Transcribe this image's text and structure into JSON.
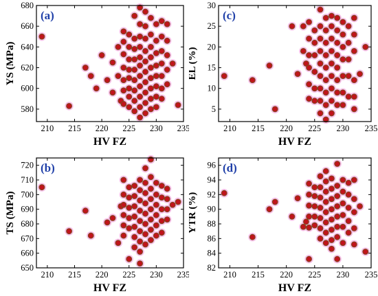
{
  "colors": {
    "marker_face": "#c0141c",
    "marker_edge": "#7a4a1c",
    "halo": "#f4a9e0",
    "axis": "#000000",
    "panel_letter": "#1f3fa8"
  },
  "chart_data": [
    {
      "type": "scatter",
      "panel": "(a)",
      "xlabel": "HV FZ",
      "ylabel": "YS (MPa)",
      "xlim": [
        208,
        235
      ],
      "ylim": [
        568,
        680
      ],
      "xticks": [
        210,
        215,
        220,
        225,
        230,
        235
      ],
      "yticks": [
        580,
        600,
        620,
        640,
        660,
        680
      ],
      "points": [
        [
          209,
          650
        ],
        [
          214,
          583
        ],
        [
          217,
          620
        ],
        [
          218,
          612
        ],
        [
          219,
          600
        ],
        [
          220,
          632
        ],
        [
          221,
          608
        ],
        [
          222,
          625
        ],
        [
          222,
          596
        ],
        [
          223,
          640
        ],
        [
          223,
          612
        ],
        [
          223.5,
          588
        ],
        [
          224,
          655
        ],
        [
          224,
          645
        ],
        [
          224,
          633
        ],
        [
          224,
          620
        ],
        [
          224,
          608
        ],
        [
          224,
          598
        ],
        [
          224,
          585
        ],
        [
          225,
          652
        ],
        [
          225,
          640
        ],
        [
          225,
          628
        ],
        [
          225,
          618
        ],
        [
          225,
          610
        ],
        [
          225,
          600
        ],
        [
          225,
          592
        ],
        [
          225,
          582
        ],
        [
          226,
          670
        ],
        [
          226,
          648
        ],
        [
          226,
          638
        ],
        [
          226,
          628
        ],
        [
          226,
          618
        ],
        [
          226,
          608
        ],
        [
          226,
          598
        ],
        [
          226,
          588
        ],
        [
          226,
          578
        ],
        [
          227,
          678
        ],
        [
          227,
          662
        ],
        [
          227,
          650
        ],
        [
          227,
          640
        ],
        [
          227,
          630
        ],
        [
          227,
          622
        ],
        [
          227,
          612
        ],
        [
          227,
          602
        ],
        [
          227,
          592
        ],
        [
          227,
          582
        ],
        [
          227,
          572
        ],
        [
          228,
          674
        ],
        [
          228,
          660
        ],
        [
          228,
          648
        ],
        [
          228,
          636
        ],
        [
          228,
          626
        ],
        [
          228,
          616
        ],
        [
          228,
          606
        ],
        [
          228,
          596
        ],
        [
          228,
          586
        ],
        [
          228,
          576
        ],
        [
          229,
          668
        ],
        [
          229,
          652
        ],
        [
          229,
          640
        ],
        [
          229,
          630
        ],
        [
          229,
          620
        ],
        [
          229,
          610
        ],
        [
          229,
          600
        ],
        [
          229,
          590
        ],
        [
          229,
          580
        ],
        [
          230,
          662
        ],
        [
          230,
          646
        ],
        [
          230,
          634
        ],
        [
          230,
          622
        ],
        [
          230,
          612
        ],
        [
          230,
          602
        ],
        [
          230,
          592
        ],
        [
          230,
          582
        ],
        [
          231,
          665
        ],
        [
          231,
          650
        ],
        [
          231,
          636
        ],
        [
          231,
          624
        ],
        [
          231,
          612
        ],
        [
          231,
          600
        ],
        [
          231,
          590
        ],
        [
          232,
          662
        ],
        [
          232,
          646
        ],
        [
          232,
          632
        ],
        [
          232,
          618
        ],
        [
          232,
          604
        ],
        [
          233,
          624
        ],
        [
          234,
          584
        ]
      ]
    },
    {
      "type": "scatter",
      "panel": "(c)",
      "xlabel": "HV FZ",
      "ylabel": "EL (%)",
      "xlim": [
        208,
        235
      ],
      "ylim": [
        2,
        30
      ],
      "xticks": [
        210,
        215,
        220,
        225,
        230,
        235
      ],
      "yticks": [
        5,
        10,
        15,
        20,
        25,
        30
      ],
      "points": [
        [
          209,
          13
        ],
        [
          214,
          12
        ],
        [
          217,
          15.5
        ],
        [
          218,
          5
        ],
        [
          221,
          25
        ],
        [
          222,
          13.5
        ],
        [
          223,
          19
        ],
        [
          223,
          25
        ],
        [
          223.5,
          16
        ],
        [
          224,
          26
        ],
        [
          224,
          22
        ],
        [
          224,
          18
        ],
        [
          224,
          15
        ],
        [
          224,
          11
        ],
        [
          224,
          7.5
        ],
        [
          225,
          24
        ],
        [
          225,
          21
        ],
        [
          225,
          18
        ],
        [
          225,
          14
        ],
        [
          225,
          10
        ],
        [
          225,
          7
        ],
        [
          226,
          29
        ],
        [
          226,
          25
        ],
        [
          226,
          22
        ],
        [
          226,
          19
        ],
        [
          226,
          16
        ],
        [
          226,
          13
        ],
        [
          226,
          10
        ],
        [
          226,
          7
        ],
        [
          226,
          4
        ],
        [
          227,
          27
        ],
        [
          227,
          24
        ],
        [
          227,
          21
        ],
        [
          227,
          18
        ],
        [
          227,
          15
        ],
        [
          227,
          12
        ],
        [
          227,
          9
        ],
        [
          227,
          6
        ],
        [
          227,
          2.5
        ],
        [
          228,
          27.5
        ],
        [
          228,
          25
        ],
        [
          228,
          22
        ],
        [
          228,
          19
        ],
        [
          228,
          16
        ],
        [
          228,
          13
        ],
        [
          228,
          10
        ],
        [
          228,
          7
        ],
        [
          228,
          4
        ],
        [
          229,
          27
        ],
        [
          229,
          24
        ],
        [
          229,
          21
        ],
        [
          229,
          18
        ],
        [
          229,
          15
        ],
        [
          229,
          12
        ],
        [
          229,
          9
        ],
        [
          229,
          6
        ],
        [
          230,
          26
        ],
        [
          230,
          23
        ],
        [
          230,
          20
        ],
        [
          230,
          17
        ],
        [
          230,
          13
        ],
        [
          230,
          9
        ],
        [
          230,
          6
        ],
        [
          231,
          25
        ],
        [
          231,
          21
        ],
        [
          231,
          17
        ],
        [
          231,
          13
        ],
        [
          231,
          8
        ],
        [
          232,
          27
        ],
        [
          232,
          23
        ],
        [
          232,
          19
        ],
        [
          232,
          12
        ],
        [
          232,
          8
        ],
        [
          232,
          5
        ],
        [
          233,
          13.5
        ],
        [
          234,
          20
        ]
      ]
    },
    {
      "type": "scatter",
      "panel": "(b)",
      "xlabel": "HV FZ",
      "ylabel": "TS (MPa)",
      "xlim": [
        208,
        235
      ],
      "ylim": [
        650,
        725
      ],
      "xticks": [
        210,
        215,
        220,
        225,
        230,
        235
      ],
      "yticks": [
        650,
        660,
        670,
        680,
        690,
        700,
        710,
        720
      ],
      "points": [
        [
          209,
          705
        ],
        [
          214,
          675
        ],
        [
          217,
          689
        ],
        [
          218,
          672
        ],
        [
          221,
          681
        ],
        [
          222,
          684
        ],
        [
          223,
          667
        ],
        [
          223.5,
          692
        ],
        [
          224,
          710
        ],
        [
          224,
          700
        ],
        [
          224,
          693
        ],
        [
          224,
          686
        ],
        [
          224,
          679
        ],
        [
          224,
          672
        ],
        [
          225,
          705
        ],
        [
          225,
          698
        ],
        [
          225,
          691
        ],
        [
          225,
          684
        ],
        [
          225,
          677
        ],
        [
          225,
          656
        ],
        [
          226,
          706
        ],
        [
          226,
          699
        ],
        [
          226,
          692
        ],
        [
          226,
          685
        ],
        [
          226,
          678
        ],
        [
          226,
          671
        ],
        [
          226,
          664
        ],
        [
          227,
          710
        ],
        [
          227,
          703
        ],
        [
          227,
          696
        ],
        [
          227,
          689
        ],
        [
          227,
          682
        ],
        [
          227,
          675
        ],
        [
          227,
          668
        ],
        [
          227,
          661
        ],
        [
          227,
          653
        ],
        [
          228,
          718
        ],
        [
          228,
          708
        ],
        [
          228,
          701
        ],
        [
          228,
          694
        ],
        [
          228,
          687
        ],
        [
          228,
          680
        ],
        [
          228,
          673
        ],
        [
          228,
          666
        ],
        [
          229,
          724
        ],
        [
          229,
          712
        ],
        [
          229,
          704
        ],
        [
          229,
          697
        ],
        [
          229,
          690
        ],
        [
          229,
          683
        ],
        [
          229,
          676
        ],
        [
          229,
          669
        ],
        [
          230,
          708
        ],
        [
          230,
          700
        ],
        [
          230,
          693
        ],
        [
          230,
          686
        ],
        [
          230,
          679
        ],
        [
          230,
          672
        ],
        [
          231,
          706
        ],
        [
          231,
          698
        ],
        [
          231,
          690
        ],
        [
          231,
          682
        ],
        [
          231,
          674
        ],
        [
          232,
          704
        ],
        [
          232,
          697
        ],
        [
          232,
          690
        ],
        [
          232,
          683
        ],
        [
          233,
          693
        ],
        [
          234,
          695
        ]
      ]
    },
    {
      "type": "scatter",
      "panel": "(d)",
      "xlabel": "HV FZ",
      "ylabel": "YTR (%)",
      "xlim": [
        208,
        235
      ],
      "ylim": [
        82,
        97
      ],
      "xticks": [
        210,
        215,
        220,
        225,
        230,
        235
      ],
      "yticks": [
        82,
        84,
        86,
        88,
        90,
        92,
        94,
        96
      ],
      "points": [
        [
          209,
          92.2
        ],
        [
          214,
          86.2
        ],
        [
          217,
          90
        ],
        [
          218,
          91
        ],
        [
          221,
          89
        ],
        [
          222,
          91.5
        ],
        [
          223,
          87.6
        ],
        [
          223.5,
          88.3
        ],
        [
          224,
          93.5
        ],
        [
          224,
          92
        ],
        [
          224,
          90.5
        ],
        [
          224,
          89
        ],
        [
          224,
          87.5
        ],
        [
          224,
          83.2
        ],
        [
          225,
          93
        ],
        [
          225,
          91.8
        ],
        [
          225,
          90.4
        ],
        [
          225,
          89
        ],
        [
          225,
          87.8
        ],
        [
          226,
          94.5
        ],
        [
          226,
          93
        ],
        [
          226,
          91.6
        ],
        [
          226,
          90.2
        ],
        [
          226,
          88.8
        ],
        [
          226,
          87.4
        ],
        [
          226,
          86
        ],
        [
          227,
          95.2
        ],
        [
          227,
          93.8
        ],
        [
          227,
          92.4
        ],
        [
          227,
          91
        ],
        [
          227,
          89.6
        ],
        [
          227,
          88.2
        ],
        [
          227,
          86.8
        ],
        [
          227,
          85.4
        ],
        [
          228,
          94.2
        ],
        [
          228,
          92.8
        ],
        [
          228,
          91.4
        ],
        [
          228,
          90
        ],
        [
          228,
          88.6
        ],
        [
          228,
          87.2
        ],
        [
          228,
          85.8
        ],
        [
          228,
          84.6
        ],
        [
          229,
          96.2
        ],
        [
          229,
          93.2
        ],
        [
          229,
          91.8
        ],
        [
          229,
          90.4
        ],
        [
          229,
          89
        ],
        [
          229,
          87.6
        ],
        [
          229,
          86.2
        ],
        [
          229,
          83.2
        ],
        [
          230,
          94
        ],
        [
          230,
          92.4
        ],
        [
          230,
          90.8
        ],
        [
          230,
          89.2
        ],
        [
          230,
          87.6
        ],
        [
          230,
          85.4
        ],
        [
          231,
          93.6
        ],
        [
          231,
          92
        ],
        [
          231,
          90.2
        ],
        [
          231,
          88.4
        ],
        [
          231,
          86.8
        ],
        [
          232,
          94
        ],
        [
          232,
          91.4
        ],
        [
          232,
          89.6
        ],
        [
          232,
          87.4
        ],
        [
          232,
          85.2
        ],
        [
          233,
          90.4
        ],
        [
          234,
          84.2
        ]
      ]
    }
  ]
}
